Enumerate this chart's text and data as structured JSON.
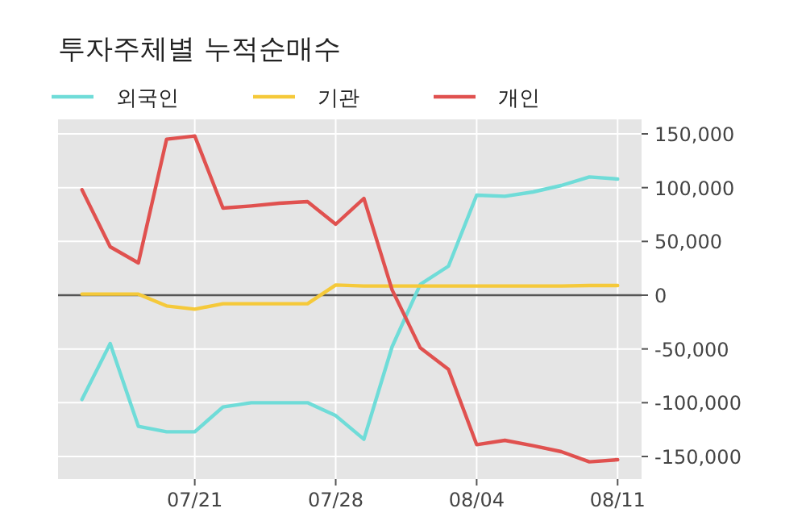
{
  "chart_data": {
    "type": "line",
    "title": "투자주체별 누적순매수",
    "categories": [
      null,
      null,
      null,
      null,
      "07/21",
      null,
      null,
      null,
      null,
      "07/28",
      null,
      null,
      null,
      null,
      "08/04",
      null,
      null,
      null,
      null,
      "08/11"
    ],
    "series": [
      {
        "name": "외국인",
        "color": "#6fdcd8",
        "values": [
          -97000,
          -45000,
          -122000,
          -127000,
          -127000,
          -104000,
          -100000,
          -100000,
          -100000,
          -112000,
          -134000,
          -48000,
          10000,
          27000,
          93000,
          92000,
          96000,
          102000,
          110000,
          108000
        ]
      },
      {
        "name": "기관",
        "color": "#f5c93a",
        "values": [
          1000,
          1000,
          1000,
          -10000,
          -13000,
          -8000,
          -8000,
          -8000,
          -8000,
          9500,
          8500,
          8500,
          8500,
          8500,
          8500,
          8500,
          8500,
          8500,
          9000,
          9000
        ]
      },
      {
        "name": "개인",
        "color": "#e0514f",
        "values": [
          98000,
          45000,
          30000,
          145000,
          148000,
          81000,
          83000,
          85500,
          87000,
          66000,
          90000,
          5000,
          -49000,
          -69000,
          -139000,
          -135000,
          -140000,
          -145500,
          -155000,
          -153000
        ]
      }
    ],
    "ylim": [
      -171000,
      163500
    ],
    "yticks": [
      {
        "value": -150000,
        "label": "-150,000"
      },
      {
        "value": -100000,
        "label": "-100,000"
      },
      {
        "value": -50000,
        "label": "-50,000"
      },
      0,
      {
        "value": 50000,
        "label": "50,000"
      },
      {
        "value": 100000,
        "label": "100,000"
      },
      {
        "value": 150000,
        "label": "150,000"
      }
    ],
    "ref_lines": [
      {
        "axis": "y",
        "value": 0,
        "color": "#555555"
      }
    ],
    "grid": true,
    "legend": "top left"
  }
}
